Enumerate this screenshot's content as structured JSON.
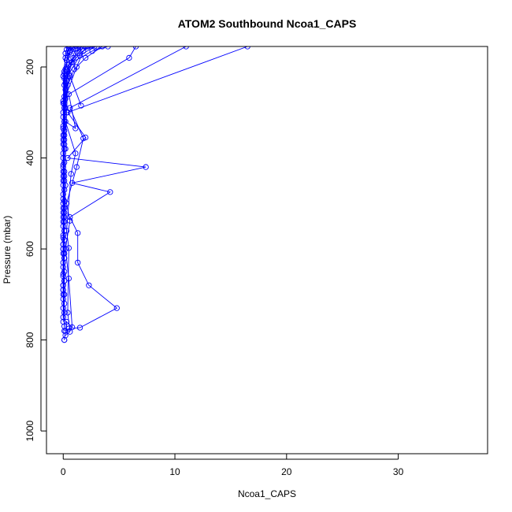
{
  "chart_data": {
    "type": "line",
    "title": "ATOM2 Southbound Ncoa1_CAPS",
    "xlabel": "Ncoa1_CAPS",
    "ylabel": "Pressure (mbar)",
    "xlim": [
      -1.5,
      38
    ],
    "ylim": [
      1050,
      155
    ],
    "y_reversed": true,
    "x_ticks": [
      0,
      10,
      20,
      30
    ],
    "y_ticks": [
      200,
      400,
      600,
      800,
      1000
    ],
    "grid": false,
    "legend": "none",
    "marker": "open-circle",
    "line_color": "#0000ff",
    "series": [
      {
        "values": [
          [
            0.1,
            800
          ],
          [
            0.2,
            780
          ],
          [
            0.5,
            775
          ],
          [
            1.5,
            773
          ],
          [
            4.8,
            730
          ],
          [
            2.3,
            680
          ],
          [
            1.3,
            630
          ],
          [
            1.3,
            565
          ],
          [
            0.6,
            530
          ],
          [
            4.2,
            475
          ],
          [
            0.8,
            455
          ],
          [
            7.4,
            420
          ],
          [
            0.4,
            400
          ],
          [
            2.0,
            355
          ],
          [
            0.4,
            300
          ],
          [
            16.5,
            155
          ]
        ]
      },
      {
        "values": [
          [
            0.1,
            800
          ],
          [
            0.3,
            760
          ],
          [
            0.8,
            772
          ],
          [
            0.5,
            665
          ],
          [
            0.2,
            600
          ],
          [
            0.6,
            538
          ],
          [
            0.3,
            500
          ],
          [
            1.2,
            420
          ],
          [
            1.8,
            357
          ],
          [
            0.6,
            290
          ],
          [
            11.0,
            155
          ]
        ]
      },
      {
        "values": [
          [
            0.2,
            790
          ],
          [
            0.6,
            782
          ],
          [
            0.4,
            740
          ],
          [
            0.5,
            598
          ],
          [
            0.3,
            560
          ],
          [
            0.7,
            435
          ],
          [
            1.1,
            390
          ],
          [
            0.2,
            320
          ],
          [
            1.1,
            335
          ],
          [
            0.5,
            260
          ],
          [
            5.9,
            180
          ],
          [
            6.5,
            155
          ]
        ]
      },
      {
        "values": [
          [
            0.1,
            780
          ],
          [
            0.1,
            700
          ],
          [
            0.1,
            620
          ],
          [
            0.1,
            540
          ],
          [
            0.2,
            460
          ],
          [
            0.2,
            380
          ],
          [
            0.3,
            300
          ],
          [
            0.4,
            240
          ],
          [
            1.0,
            205
          ],
          [
            2.0,
            180
          ],
          [
            3.5,
            155
          ]
        ]
      },
      {
        "values": [
          [
            0.1,
            770
          ],
          [
            0.0,
            690
          ],
          [
            0.1,
            610
          ],
          [
            0.0,
            530
          ],
          [
            0.1,
            450
          ],
          [
            0.1,
            370
          ],
          [
            0.2,
            290
          ],
          [
            0.3,
            230
          ],
          [
            0.8,
            190
          ],
          [
            2.6,
            165
          ],
          [
            4.0,
            155
          ]
        ]
      },
      {
        "values": [
          [
            0.0,
            760
          ],
          [
            0.0,
            680
          ],
          [
            0.0,
            600
          ],
          [
            0.1,
            520
          ],
          [
            0.0,
            440
          ],
          [
            0.1,
            360
          ],
          [
            0.1,
            280
          ],
          [
            0.5,
            215
          ],
          [
            1.5,
            175
          ],
          [
            2.8,
            155
          ]
        ]
      },
      {
        "values": [
          [
            0.0,
            750
          ],
          [
            0.1,
            670
          ],
          [
            0.0,
            590
          ],
          [
            0.1,
            510
          ],
          [
            0.1,
            430
          ],
          [
            0.0,
            350
          ],
          [
            0.2,
            270
          ],
          [
            0.6,
            220
          ],
          [
            1.6,
            285
          ],
          [
            0.3,
            200
          ],
          [
            2.2,
            155
          ]
        ]
      },
      {
        "values": [
          [
            0.1,
            740
          ],
          [
            0.0,
            660
          ],
          [
            0.1,
            580
          ],
          [
            0.0,
            500
          ],
          [
            0.0,
            420
          ],
          [
            0.1,
            340
          ],
          [
            0.3,
            260
          ],
          [
            1.2,
            200
          ],
          [
            1.8,
            165
          ],
          [
            2.5,
            155
          ]
        ]
      },
      {
        "values": [
          [
            0.0,
            730
          ],
          [
            0.1,
            650
          ],
          [
            0.0,
            570
          ],
          [
            0.0,
            490
          ],
          [
            0.1,
            410
          ],
          [
            0.0,
            330
          ],
          [
            0.2,
            250
          ],
          [
            0.4,
            210
          ],
          [
            0.9,
            180
          ],
          [
            1.6,
            155
          ]
        ]
      },
      {
        "values": [
          [
            0.1,
            720
          ],
          [
            0.0,
            640
          ],
          [
            0.1,
            560
          ],
          [
            0.0,
            480
          ],
          [
            0.0,
            400
          ],
          [
            0.1,
            320
          ],
          [
            0.1,
            240
          ],
          [
            0.5,
            195
          ],
          [
            1.3,
            170
          ],
          [
            1.9,
            155
          ]
        ]
      },
      {
        "values": [
          [
            0.0,
            710
          ],
          [
            0.0,
            630
          ],
          [
            0.0,
            550
          ],
          [
            0.1,
            470
          ],
          [
            0.0,
            390
          ],
          [
            0.0,
            310
          ],
          [
            0.2,
            235
          ],
          [
            0.7,
            190
          ],
          [
            1.1,
            160
          ],
          [
            1.4,
            155
          ]
        ]
      },
      {
        "values": [
          [
            0.0,
            700
          ],
          [
            0.1,
            620
          ],
          [
            0.0,
            540
          ],
          [
            0.0,
            460
          ],
          [
            0.1,
            380
          ],
          [
            0.0,
            300
          ],
          [
            0.1,
            225
          ],
          [
            0.3,
            185
          ],
          [
            0.6,
            165
          ],
          [
            0.9,
            155
          ]
        ]
      },
      {
        "values": [
          [
            0.0,
            690
          ],
          [
            0.0,
            610
          ],
          [
            0.1,
            530
          ],
          [
            0.0,
            450
          ],
          [
            0.0,
            370
          ],
          [
            0.1,
            290
          ],
          [
            0.0,
            220
          ],
          [
            0.2,
            180
          ],
          [
            0.5,
            160
          ],
          [
            0.7,
            155
          ]
        ]
      },
      {
        "values": [
          [
            0.0,
            680
          ],
          [
            0.0,
            600
          ],
          [
            0.0,
            520
          ],
          [
            0.1,
            440
          ],
          [
            0.0,
            360
          ],
          [
            0.0,
            280
          ],
          [
            0.1,
            215
          ],
          [
            0.4,
            175
          ],
          [
            0.8,
            158
          ],
          [
            1.2,
            155
          ]
        ]
      },
      {
        "values": [
          [
            0.1,
            670
          ],
          [
            0.0,
            590
          ],
          [
            0.0,
            510
          ],
          [
            0.0,
            430
          ],
          [
            0.1,
            350
          ],
          [
            0.0,
            275
          ],
          [
            0.1,
            210
          ],
          [
            0.2,
            170
          ],
          [
            0.3,
            162
          ],
          [
            0.5,
            155
          ]
        ]
      },
      {
        "values": [
          [
            0.0,
            655
          ],
          [
            0.0,
            575
          ],
          [
            0.1,
            495
          ],
          [
            0.0,
            415
          ],
          [
            0.0,
            335
          ],
          [
            0.1,
            265
          ],
          [
            0.2,
            205
          ],
          [
            0.6,
            168
          ],
          [
            1.7,
            160
          ],
          [
            3.0,
            155
          ]
        ]
      }
    ]
  }
}
